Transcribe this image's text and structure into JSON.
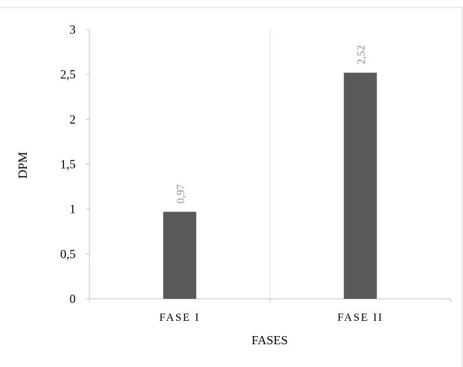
{
  "chart_data": {
    "type": "bar",
    "title": "",
    "xlabel": "FASES",
    "ylabel": "DPM",
    "categories": [
      "FASE I",
      "FASE II"
    ],
    "values": [
      0.97,
      2.52
    ],
    "value_labels": [
      "0,97",
      "2,52"
    ],
    "ylim": [
      0,
      3
    ],
    "yticks": [
      0,
      0.5,
      1,
      1.5,
      2,
      2.5,
      3
    ],
    "ytick_labels": [
      "0",
      "0,5",
      "1",
      "1,5",
      "2",
      "2,5",
      "3"
    ],
    "grid": "vertical category separators",
    "legend": "none",
    "bar_color": "#595959",
    "label_color": "#8c8c8c"
  }
}
